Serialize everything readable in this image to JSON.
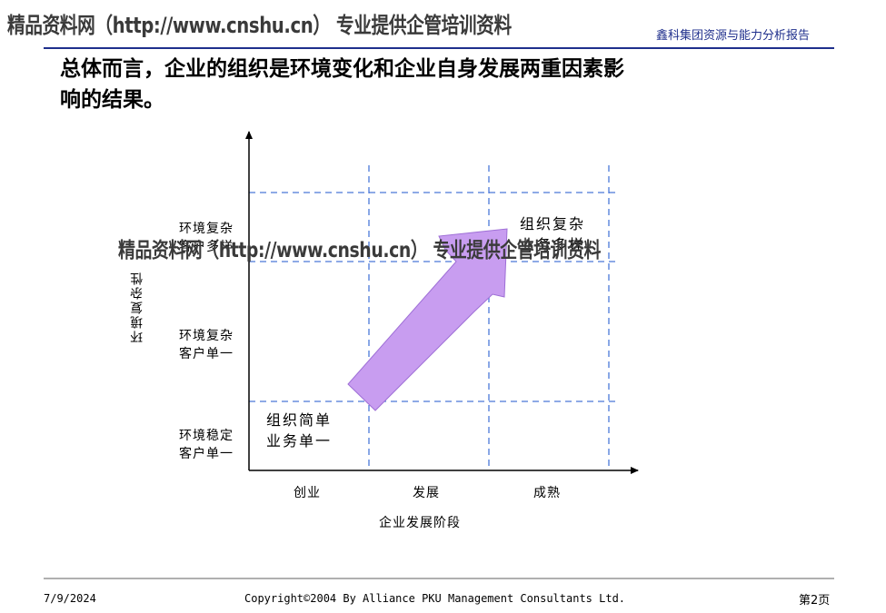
{
  "header": {
    "watermark": "精品资料网（http://www.cnshu.cn） 专业提供企管培训资料",
    "report_title": "鑫科集团资源与能力分析报告"
  },
  "headline": {
    "line1": "总体而言，企业的组织是环境变化和企业自身发展两重因素影",
    "line2": "响的结果。"
  },
  "diagram": {
    "y_axis_label": "环境复杂性",
    "x_axis_label": "企业发展阶段",
    "x_categories": [
      "创业",
      "发展",
      "成熟"
    ],
    "y_levels": [
      {
        "line1": "环境复杂",
        "line2": "客户多样"
      },
      {
        "line1": "环境复杂",
        "line2": "客户单一"
      },
      {
        "line1": "环境稳定",
        "line2": "客户单一"
      }
    ],
    "start_cell": {
      "line1": "组织简单",
      "line2": "业务单一"
    },
    "end_cell": {
      "line1": "组织复杂",
      "line2": "业务多样"
    },
    "arrow_color": "#c89df0",
    "grid_color": "#4a78d8",
    "overlay_watermark": "精品资料网（http://www.cnshu.cn） 专业提供企管培训资料"
  },
  "footer": {
    "date": "7/9/2024",
    "copyright": "Copyright©2004 By Alliance PKU Management Consultants Ltd.",
    "page": "第2页"
  }
}
